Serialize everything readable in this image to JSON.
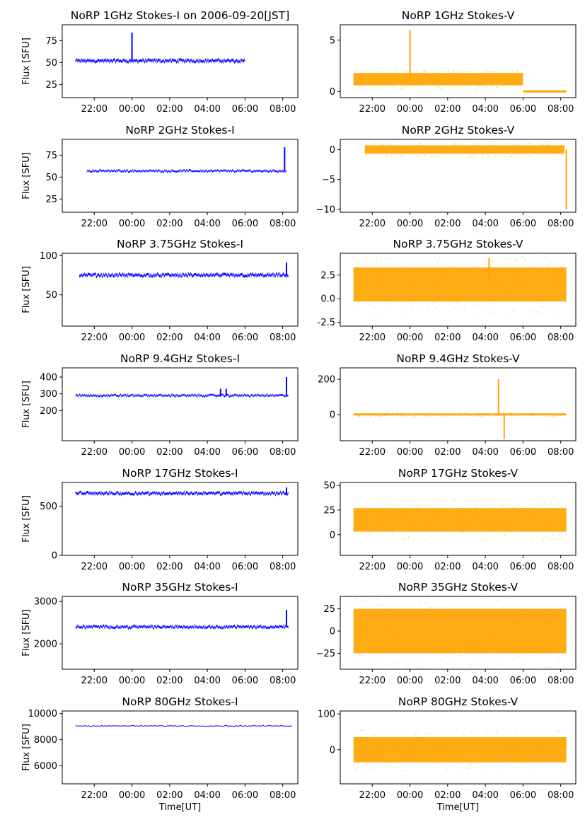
{
  "figure": {
    "xlabel": "Time[UT]",
    "ylabel": "Flux [SFU]",
    "xticks": [
      "22:00",
      "00:00",
      "02:00",
      "04:00",
      "06:00",
      "08:00"
    ],
    "x_tick_hours": [
      22,
      24,
      26,
      28,
      30,
      32
    ],
    "xlim_hours": [
      20.3,
      32.8
    ],
    "obs_window_hours": [
      21.0,
      32.3
    ],
    "colors": {
      "stokes_i": "#0000ff",
      "stokes_v": "#ffa500",
      "axis": "#000000",
      "background": "#ffffff"
    }
  },
  "chart_data": [
    {
      "type": "scatter",
      "title": "NoRP 1GHz Stokes-I on 2006-09-20[JST]",
      "ylabel": "Flux [SFU]",
      "ylim": [
        10,
        93
      ],
      "yticks": [
        25,
        50,
        75
      ],
      "stokes": "I",
      "baseline": 52,
      "x_start": 21.0,
      "x_end": 30.0,
      "noise": 2.2,
      "spikes": [
        {
          "x": 24.0,
          "y": 84
        }
      ]
    },
    {
      "type": "scatter",
      "title": "NoRP 1GHz Stokes-V",
      "ylim": [
        -0.6,
        6.5
      ],
      "yticks": [
        0,
        5
      ],
      "stokes": "V",
      "baseline": 1.2,
      "x_start": 21.0,
      "x_end": 30.0,
      "noise": 0.6,
      "spikes": [
        {
          "x": 24.0,
          "y": 6
        }
      ],
      "zero_line": true
    },
    {
      "type": "scatter",
      "title": "NoRP 2GHz Stokes-I",
      "ylabel": "Flux [SFU]",
      "ylim": [
        10,
        93
      ],
      "yticks": [
        25,
        50,
        75
      ],
      "stokes": "I",
      "baseline": 57,
      "x_start": 21.6,
      "x_end": 32.2,
      "noise": 1.5,
      "spikes": [
        {
          "x": 32.1,
          "y": 84
        }
      ]
    },
    {
      "type": "scatter",
      "title": "NoRP 2GHz Stokes-V",
      "ylim": [
        -10.5,
        1.7
      ],
      "yticks": [
        0,
        -5,
        -10
      ],
      "stokes": "V",
      "baseline": 0,
      "x_start": 21.6,
      "x_end": 32.2,
      "noise": 0.7,
      "spikes": [
        {
          "x": 32.3,
          "y": -10
        }
      ]
    },
    {
      "type": "scatter",
      "title": "NoRP 3.75GHz Stokes-I",
      "ylabel": "Flux [SFU]",
      "ylim": [
        10,
        103
      ],
      "yticks": [
        50,
        100
      ],
      "stokes": "I",
      "baseline": 75,
      "x_start": 21.2,
      "x_end": 32.3,
      "noise": 2.5,
      "spikes": [
        {
          "x": 32.2,
          "y": 91
        }
      ]
    },
    {
      "type": "scatter",
      "title": "NoRP 3.75GHz Stokes-V",
      "ylim": [
        -2.9,
        4.8
      ],
      "yticks": [
        2.5,
        0.0,
        -2.5
      ],
      "stokes": "V",
      "baseline": 1.5,
      "x_start": 21.0,
      "x_end": 32.3,
      "noise": 1.8,
      "spikes": [
        {
          "x": 28.2,
          "y": 4.3
        }
      ]
    },
    {
      "type": "scatter",
      "title": "NoRP 9.4GHz Stokes-I",
      "ylabel": "Flux [SFU]",
      "ylim": [
        20,
        455
      ],
      "yticks": [
        200,
        300,
        400
      ],
      "stokes": "I",
      "baseline": 290,
      "x_start": 21.0,
      "x_end": 32.3,
      "noise": 8,
      "spikes": [
        {
          "x": 32.2,
          "y": 400
        },
        {
          "x": 28.7,
          "y": 330
        },
        {
          "x": 29.0,
          "y": 330
        }
      ]
    },
    {
      "type": "scatter",
      "title": "NoRP 9.4GHz Stokes-V",
      "ylim": [
        -150,
        265
      ],
      "yticks": [
        200,
        0
      ],
      "stokes": "V",
      "baseline": 0,
      "x_start": 21.0,
      "x_end": 32.3,
      "noise": 6,
      "spikes": [
        {
          "x": 28.7,
          "y": 200
        },
        {
          "x": 29.0,
          "y": -140
        }
      ]
    },
    {
      "type": "scatter",
      "title": "NoRP 17GHz Stokes-I",
      "ylabel": "Flux [SFU]",
      "ylim": [
        0,
        740
      ],
      "yticks": [
        0,
        500
      ],
      "stokes": "I",
      "baseline": 630,
      "x_start": 21.0,
      "x_end": 32.3,
      "noise": 18,
      "spikes": [
        {
          "x": 32.2,
          "y": 690
        }
      ]
    },
    {
      "type": "scatter",
      "title": "NoRP 17GHz Stokes-V",
      "ylim": [
        -21,
        53
      ],
      "yticks": [
        50,
        25,
        0
      ],
      "stokes": "V",
      "baseline": 15,
      "x_start": 21.0,
      "x_end": 32.3,
      "noise": 12,
      "spikes": []
    },
    {
      "type": "scatter",
      "title": "NoRP 35GHz Stokes-I",
      "ylabel": "Flux [SFU]",
      "ylim": [
        1400,
        3120
      ],
      "yticks": [
        2000,
        3000
      ],
      "stokes": "I",
      "baseline": 2400,
      "x_start": 21.0,
      "x_end": 32.3,
      "noise": 40,
      "spikes": [
        {
          "x": 32.2,
          "y": 2800
        }
      ]
    },
    {
      "type": "scatter",
      "title": "NoRP 35GHz Stokes-V",
      "ylim": [
        -43,
        39
      ],
      "yticks": [
        25,
        0,
        -25
      ],
      "stokes": "V",
      "baseline": 0,
      "x_start": 21.0,
      "x_end": 32.3,
      "noise": 25,
      "spikes": []
    },
    {
      "type": "scatter",
      "title": "NoRP 80GHz Stokes-I",
      "ylabel": "Flux [SFU]",
      "xlabel": "Time[UT]",
      "ylim": [
        4600,
        10200
      ],
      "yticks": [
        6000,
        8000,
        10000
      ],
      "stokes": "I",
      "baseline": 9050,
      "x_start": 21.0,
      "x_end": 32.5,
      "noise": 50,
      "spikes": []
    },
    {
      "type": "scatter",
      "title": "NoRP 80GHz Stokes-V",
      "xlabel": "Time[UT]",
      "ylim": [
        -95,
        108
      ],
      "yticks": [
        100,
        0
      ],
      "stokes": "V",
      "baseline": 0,
      "x_start": 21.0,
      "x_end": 32.3,
      "noise": 35,
      "spikes": []
    }
  ]
}
